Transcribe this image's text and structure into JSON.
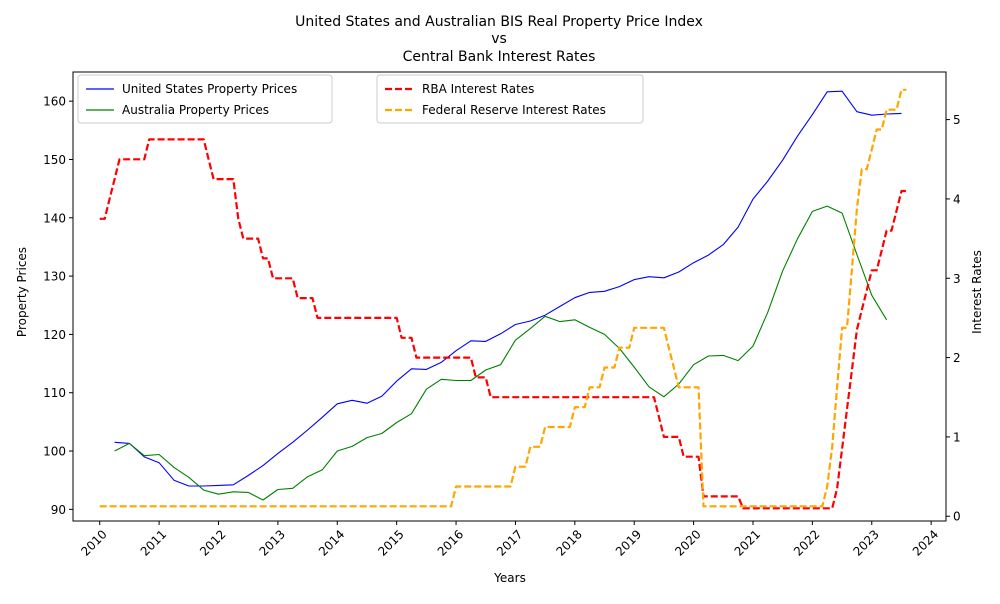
{
  "chart_data": {
    "type": "line",
    "title_lines": [
      "United States and Australian BIS Real Property Price Index",
      "vs",
      "Central Bank Interest Rates"
    ],
    "xlabel": "Years",
    "ylabel_left": "Property Prices",
    "ylabel_right": "Interest Rates",
    "xlim": [
      2009.55,
      2024.25
    ],
    "ylim_left": [
      88,
      165
    ],
    "ylim_right": [
      -0.06,
      5.6
    ],
    "x_ticks": [
      2010,
      2011,
      2012,
      2013,
      2014,
      2015,
      2016,
      2017,
      2018,
      2019,
      2020,
      2021,
      2022,
      2023,
      2024
    ],
    "x_tick_labels": [
      "2010",
      "2011",
      "2012",
      "2013",
      "2014",
      "2015",
      "2016",
      "2017",
      "2018",
      "2019",
      "2020",
      "2021",
      "2022",
      "2023",
      "2024"
    ],
    "y_ticks_left": [
      90,
      100,
      110,
      120,
      130,
      140,
      150,
      160
    ],
    "y_tick_labels_left": [
      "90",
      "100",
      "110",
      "120",
      "130",
      "140",
      "150",
      "160"
    ],
    "y_ticks_right": [
      0,
      1,
      2,
      3,
      4,
      5
    ],
    "y_tick_labels_right": [
      "0",
      "1",
      "2",
      "3",
      "4",
      "5"
    ],
    "grid": false,
    "legend_left": {
      "placement": "top-left",
      "entries": [
        "United States Property Prices",
        "Australia Property Prices"
      ]
    },
    "legend_right": {
      "placement": "top-center",
      "entries": [
        "RBA Interest Rates",
        "Federal Reserve Interest Rates"
      ]
    },
    "price_series": [
      {
        "name": "United States Property Prices",
        "color": "#0000ff",
        "x": [
          2010.25,
          2010.5,
          2010.75,
          2011.0,
          2011.25,
          2011.5,
          2011.75,
          2012.0,
          2012.25,
          2012.5,
          2012.75,
          2013.0,
          2013.25,
          2013.5,
          2013.75,
          2014.0,
          2014.25,
          2014.5,
          2014.75,
          2015.0,
          2015.25,
          2015.5,
          2015.75,
          2016.0,
          2016.25,
          2016.5,
          2016.75,
          2017.0,
          2017.25,
          2017.5,
          2017.75,
          2018.0,
          2018.25,
          2018.5,
          2018.75,
          2019.0,
          2019.25,
          2019.5,
          2019.75,
          2020.0,
          2020.25,
          2020.5,
          2020.75,
          2021.0,
          2021.25,
          2021.5,
          2021.75,
          2022.0,
          2022.25,
          2022.5,
          2022.75,
          2023.0,
          2023.25,
          2023.5
        ],
        "y": [
          101.5,
          101.3,
          99.0,
          98.0,
          95.0,
          94.0,
          94.0,
          94.1,
          94.2,
          95.8,
          97.5,
          99.6,
          101.5,
          103.6,
          105.8,
          108.1,
          108.7,
          108.2,
          109.4,
          112.0,
          114.1,
          114.0,
          115.2,
          117.2,
          118.9,
          118.8,
          120.1,
          121.7,
          122.3,
          123.3,
          124.8,
          126.3,
          127.2,
          127.4,
          128.2,
          129.4,
          129.9,
          129.7,
          130.7,
          132.3,
          133.6,
          135.4,
          138.4,
          143.2,
          146.3,
          149.9,
          154.0,
          157.7,
          161.6,
          161.7,
          158.2,
          157.6,
          157.8,
          157.9
        ]
      },
      {
        "name": "Australia Property Prices",
        "color": "#008000",
        "x": [
          2010.25,
          2010.5,
          2010.75,
          2011.0,
          2011.25,
          2011.5,
          2011.75,
          2012.0,
          2012.25,
          2012.5,
          2012.75,
          2013.0,
          2013.25,
          2013.5,
          2013.75,
          2014.0,
          2014.25,
          2014.5,
          2014.75,
          2015.0,
          2015.25,
          2015.5,
          2015.75,
          2016.0,
          2016.25,
          2016.5,
          2016.75,
          2017.0,
          2017.25,
          2017.5,
          2017.75,
          2018.0,
          2018.25,
          2018.5,
          2018.75,
          2019.0,
          2019.25,
          2019.5,
          2019.75,
          2020.0,
          2020.25,
          2020.5,
          2020.75,
          2021.0,
          2021.25,
          2021.5,
          2021.75,
          2022.0,
          2022.25,
          2022.5,
          2022.75,
          2023.0,
          2023.25
        ],
        "y": [
          100.0,
          101.3,
          99.2,
          99.4,
          97.2,
          95.5,
          93.3,
          92.6,
          93.0,
          92.9,
          91.6,
          93.4,
          93.6,
          95.6,
          96.8,
          100.0,
          100.8,
          102.3,
          103.0,
          104.9,
          106.4,
          110.6,
          112.3,
          112.1,
          112.1,
          113.9,
          114.8,
          119.0,
          121.0,
          123.1,
          122.2,
          122.5,
          121.2,
          120.0,
          117.6,
          114.4,
          111.0,
          109.3,
          111.5,
          114.8,
          116.3,
          116.4,
          115.5,
          118.0,
          123.8,
          130.9,
          136.4,
          141.1,
          142.0,
          140.8,
          133.7,
          126.7,
          122.5
        ]
      }
    ],
    "rate_series": [
      {
        "name": "RBA Interest Rates",
        "color": "#ff0000",
        "x": [
          2010.0,
          2010.083,
          2010.167,
          2010.25,
          2010.333,
          2010.417,
          2010.75,
          2010.833,
          2010.917,
          2011.75,
          2011.833,
          2011.917,
          2012.25,
          2012.333,
          2012.417,
          2012.667,
          2012.75,
          2012.833,
          2012.917,
          2013.25,
          2013.333,
          2013.583,
          2013.667,
          2015.0,
          2015.083,
          2015.25,
          2015.333,
          2016.25,
          2016.333,
          2016.5,
          2016.583,
          2019.333,
          2019.417,
          2019.5,
          2019.583,
          2019.75,
          2019.833,
          2020.083,
          2020.167,
          2020.75,
          2020.833,
          2022.333,
          2022.417,
          2022.5,
          2022.583,
          2022.667,
          2022.75,
          2022.833,
          2022.917,
          2023.0,
          2023.083,
          2023.167,
          2023.25,
          2023.333,
          2023.417,
          2023.5,
          2023.583
        ],
        "y": [
          3.75,
          3.75,
          4.0,
          4.25,
          4.5,
          4.5,
          4.5,
          4.75,
          4.75,
          4.75,
          4.5,
          4.25,
          4.25,
          3.75,
          3.5,
          3.5,
          3.25,
          3.25,
          3.0,
          3.0,
          2.75,
          2.75,
          2.5,
          2.5,
          2.25,
          2.25,
          2.0,
          2.0,
          1.75,
          1.75,
          1.5,
          1.5,
          1.25,
          1.0,
          1.0,
          1.0,
          0.75,
          0.75,
          0.25,
          0.25,
          0.1,
          0.1,
          0.35,
          0.85,
          1.35,
          1.85,
          2.35,
          2.6,
          2.85,
          3.1,
          3.1,
          3.35,
          3.6,
          3.6,
          3.85,
          4.1,
          4.1
        ]
      },
      {
        "name": "Federal Reserve Interest Rates",
        "color": "#ffa500",
        "x": [
          2010.0,
          2015.917,
          2016.0,
          2016.917,
          2017.0,
          2017.167,
          2017.25,
          2017.417,
          2017.5,
          2017.917,
          2018.0,
          2018.167,
          2018.25,
          2018.417,
          2018.5,
          2018.667,
          2018.75,
          2018.917,
          2019.0,
          2019.5,
          2019.583,
          2019.667,
          2019.75,
          2019.833,
          2020.083,
          2020.167,
          2020.25,
          2022.083,
          2022.167,
          2022.25,
          2022.333,
          2022.417,
          2022.5,
          2022.583,
          2022.667,
          2022.75,
          2022.833,
          2022.917,
          2023.0,
          2023.083,
          2023.167,
          2023.25,
          2023.333,
          2023.417,
          2023.5,
          2023.583
        ],
        "y": [
          0.125,
          0.125,
          0.375,
          0.375,
          0.625,
          0.625,
          0.875,
          0.875,
          1.125,
          1.125,
          1.375,
          1.375,
          1.625,
          1.625,
          1.875,
          1.875,
          2.125,
          2.125,
          2.375,
          2.375,
          2.125,
          1.875,
          1.625,
          1.625,
          1.625,
          0.125,
          0.125,
          0.125,
          0.125,
          0.375,
          0.875,
          1.625,
          2.375,
          2.375,
          3.125,
          3.875,
          4.375,
          4.375,
          4.625,
          4.875,
          4.875,
          5.125,
          5.125,
          5.125,
          5.375,
          5.375
        ]
      }
    ]
  }
}
